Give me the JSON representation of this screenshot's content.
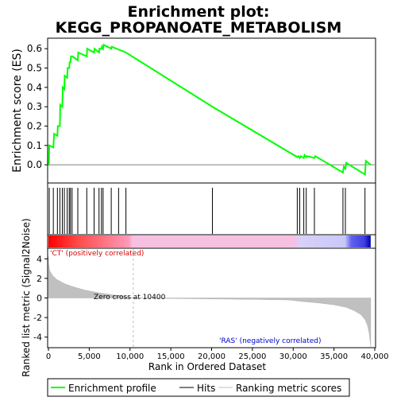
{
  "chart_data": [
    {
      "panel": "enrichment",
      "type": "line",
      "title_line1": "Enrichment plot:",
      "title_line2": "KEGG_PROPANOATE_METABOLISM",
      "ylabel": "Enrichment score (ES)",
      "ylim": [
        -0.09,
        0.65
      ],
      "yticks": [
        0.0,
        0.1,
        0.2,
        0.3,
        0.4,
        0.5,
        0.6
      ],
      "ytick_labels": [
        "0.0",
        "0.1",
        "0.2",
        "0.3",
        "0.4",
        "0.5",
        "0.6"
      ],
      "xlim": [
        0,
        40000
      ],
      "line_color": "#00ff00",
      "series": [
        {
          "name": "Enrichment profile",
          "x": [
            0,
            50,
            100,
            600,
            700,
            1100,
            1150,
            1400,
            1450,
            1700,
            1750,
            1950,
            2000,
            2300,
            2350,
            2550,
            2600,
            2700,
            2750,
            2900,
            2950,
            3600,
            3650,
            4700,
            4750,
            5600,
            5650,
            6200,
            6250,
            6500,
            6550,
            6700,
            6750,
            7700,
            7750,
            9500,
            20100,
            30500,
            30600,
            30800,
            30900,
            31300,
            31400,
            31600,
            31700,
            32600,
            32700,
            36100,
            36200,
            36400,
            36500,
            38800,
            38900,
            39500
          ],
          "y": [
            0.0,
            0.0,
            0.1,
            0.09,
            0.16,
            0.15,
            0.2,
            0.2,
            0.31,
            0.3,
            0.4,
            0.39,
            0.46,
            0.45,
            0.5,
            0.5,
            0.53,
            0.53,
            0.56,
            0.56,
            0.56,
            0.54,
            0.58,
            0.56,
            0.6,
            0.58,
            0.6,
            0.58,
            0.6,
            0.6,
            0.61,
            0.6,
            0.62,
            0.6,
            0.61,
            0.58,
            0.3,
            0.04,
            0.045,
            0.035,
            0.045,
            0.035,
            0.05,
            0.04,
            0.045,
            0.035,
            0.045,
            -0.04,
            -0.01,
            -0.02,
            0.01,
            -0.05,
            0.02,
            0.0
          ]
        }
      ]
    },
    {
      "panel": "hits",
      "type": "scatter",
      "series": [
        {
          "name": "Hits",
          "x": [
            100,
            600,
            1100,
            1400,
            1700,
            1950,
            2300,
            2550,
            2700,
            2900,
            3600,
            4700,
            5600,
            6200,
            6500,
            6700,
            7700,
            8600,
            9500,
            20100,
            30500,
            30800,
            31300,
            31600,
            32600,
            36100,
            36400,
            38800
          ]
        }
      ]
    },
    {
      "panel": "ranking",
      "type": "area",
      "xlabel": "Rank in Ordered Dataset",
      "ylabel": "Ranked list metric (Signal2Noise)",
      "ylim": [
        -5,
        5
      ],
      "yticks": [
        -4,
        -2,
        0,
        2,
        4
      ],
      "ytick_labels": [
        "-4",
        "-2",
        "0",
        "2",
        "4"
      ],
      "xlim": [
        0,
        40000
      ],
      "xticks": [
        0,
        5000,
        10000,
        15000,
        20000,
        25000,
        30000,
        35000,
        40000
      ],
      "xtick_labels": [
        "0",
        "5,000",
        "10,000",
        "15,000",
        "20,000",
        "25,000",
        "30,000",
        "35,000",
        "40,000"
      ],
      "zero_cross": 10400,
      "zero_cross_label": "Zero cross at 10400",
      "positive_label": "'CT' (positively correlated)",
      "negative_label": "'RAS' (negatively correlated)",
      "series": [
        {
          "name": "Ranking metric scores",
          "x": [
            0,
            30,
            150,
            500,
            1000,
            2000,
            3000,
            4500,
            6000,
            8000,
            10400,
            15000,
            20000,
            25000,
            29500,
            31000,
            33000,
            35000,
            36500,
            37500,
            38300,
            38800,
            39100,
            39300,
            39450,
            39500
          ],
          "y": [
            4.2,
            3.5,
            2.8,
            2.3,
            1.9,
            1.45,
            1.15,
            0.8,
            0.55,
            0.3,
            0.0,
            -0.05,
            -0.1,
            -0.15,
            -0.2,
            -0.35,
            -0.5,
            -0.7,
            -0.95,
            -1.3,
            -1.7,
            -2.2,
            -2.8,
            -3.5,
            -4.5,
            -5.0
          ]
        }
      ]
    }
  ],
  "legend": {
    "enrichment_label": "Enrichment profile",
    "hits_label": "Hits",
    "ranking_label": "Ranking metric scores"
  },
  "colors": {
    "enrichment_line": "#00ff00",
    "hits": "#000000",
    "ranking_fill": "#c0c0c0",
    "positive_text": "#dd0000",
    "negative_text": "#0000cc",
    "zero_line": "#c0c0c0",
    "heatbar_positive": "#ff0000",
    "heatbar_mid_positive": "#ffc0e0",
    "heatbar_mid_negative": "#d0d0ff",
    "heatbar_negative": "#0000cc"
  }
}
